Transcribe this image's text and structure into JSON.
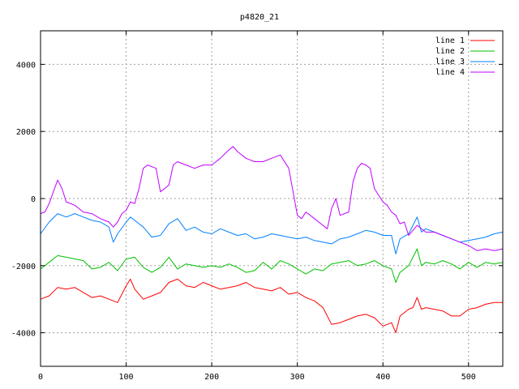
{
  "chart_data": {
    "type": "line",
    "title": "p4820_21",
    "xlabel": "",
    "ylabel": "",
    "xlim": [
      0,
      540
    ],
    "ylim": [
      -5000,
      5000
    ],
    "x_ticks": [
      0,
      100,
      200,
      300,
      400,
      500
    ],
    "y_ticks": [
      -4000,
      -2000,
      0,
      2000,
      4000
    ],
    "x_tick_labels": [
      "0",
      "100",
      "200",
      "300",
      "400",
      "500"
    ],
    "y_tick_labels": [
      "-4000",
      "-2000",
      "0",
      "2000",
      "4000"
    ],
    "grid": true,
    "legend_position": "top-right",
    "series": [
      {
        "name": "line 1",
        "color": "#ff0000",
        "points": [
          [
            0,
            -3000
          ],
          [
            10,
            -2900
          ],
          [
            20,
            -2650
          ],
          [
            30,
            -2700
          ],
          [
            40,
            -2650
          ],
          [
            50,
            -2800
          ],
          [
            60,
            -2950
          ],
          [
            70,
            -2900
          ],
          [
            80,
            -3000
          ],
          [
            90,
            -3100
          ],
          [
            100,
            -2600
          ],
          [
            105,
            -2400
          ],
          [
            110,
            -2700
          ],
          [
            120,
            -3000
          ],
          [
            130,
            -2900
          ],
          [
            140,
            -2800
          ],
          [
            150,
            -2500
          ],
          [
            160,
            -2400
          ],
          [
            170,
            -2600
          ],
          [
            180,
            -2650
          ],
          [
            190,
            -2500
          ],
          [
            200,
            -2600
          ],
          [
            210,
            -2700
          ],
          [
            220,
            -2650
          ],
          [
            230,
            -2600
          ],
          [
            240,
            -2500
          ],
          [
            250,
            -2650
          ],
          [
            260,
            -2700
          ],
          [
            270,
            -2750
          ],
          [
            280,
            -2650
          ],
          [
            290,
            -2850
          ],
          [
            300,
            -2800
          ],
          [
            310,
            -2950
          ],
          [
            320,
            -3050
          ],
          [
            330,
            -3250
          ],
          [
            340,
            -3750
          ],
          [
            350,
            -3700
          ],
          [
            360,
            -3600
          ],
          [
            370,
            -3500
          ],
          [
            380,
            -3450
          ],
          [
            390,
            -3550
          ],
          [
            400,
            -3800
          ],
          [
            410,
            -3700
          ],
          [
            415,
            -4000
          ],
          [
            420,
            -3500
          ],
          [
            430,
            -3300
          ],
          [
            435,
            -3250
          ],
          [
            440,
            -2950
          ],
          [
            445,
            -3300
          ],
          [
            450,
            -3250
          ],
          [
            460,
            -3300
          ],
          [
            470,
            -3350
          ],
          [
            480,
            -3500
          ],
          [
            490,
            -3500
          ],
          [
            500,
            -3300
          ],
          [
            510,
            -3250
          ],
          [
            520,
            -3150
          ],
          [
            530,
            -3100
          ],
          [
            540,
            -3100
          ]
        ]
      },
      {
        "name": "line 2",
        "color": "#00c000",
        "points": [
          [
            0,
            -2100
          ],
          [
            10,
            -1900
          ],
          [
            20,
            -1700
          ],
          [
            30,
            -1750
          ],
          [
            40,
            -1800
          ],
          [
            50,
            -1850
          ],
          [
            60,
            -2100
          ],
          [
            70,
            -2050
          ],
          [
            80,
            -1900
          ],
          [
            90,
            -2150
          ],
          [
            100,
            -1800
          ],
          [
            110,
            -1750
          ],
          [
            120,
            -2050
          ],
          [
            130,
            -2200
          ],
          [
            140,
            -2050
          ],
          [
            150,
            -1750
          ],
          [
            160,
            -2100
          ],
          [
            170,
            -1950
          ],
          [
            180,
            -2000
          ],
          [
            190,
            -2050
          ],
          [
            200,
            -2000
          ],
          [
            210,
            -2050
          ],
          [
            220,
            -1950
          ],
          [
            230,
            -2050
          ],
          [
            240,
            -2200
          ],
          [
            250,
            -2150
          ],
          [
            260,
            -1900
          ],
          [
            270,
            -2100
          ],
          [
            280,
            -1850
          ],
          [
            290,
            -1950
          ],
          [
            300,
            -2100
          ],
          [
            310,
            -2250
          ],
          [
            320,
            -2100
          ],
          [
            330,
            -2150
          ],
          [
            340,
            -1950
          ],
          [
            350,
            -1900
          ],
          [
            360,
            -1850
          ],
          [
            370,
            -2000
          ],
          [
            380,
            -1950
          ],
          [
            390,
            -1850
          ],
          [
            400,
            -2000
          ],
          [
            410,
            -2100
          ],
          [
            415,
            -2500
          ],
          [
            420,
            -2200
          ],
          [
            430,
            -2000
          ],
          [
            440,
            -1500
          ],
          [
            445,
            -2000
          ],
          [
            450,
            -1900
          ],
          [
            460,
            -1950
          ],
          [
            470,
            -1850
          ],
          [
            480,
            -1950
          ],
          [
            490,
            -2100
          ],
          [
            500,
            -1900
          ],
          [
            510,
            -2050
          ],
          [
            520,
            -1900
          ],
          [
            530,
            -1950
          ],
          [
            540,
            -1900
          ]
        ]
      },
      {
        "name": "line 3",
        "color": "#0080ff",
        "points": [
          [
            0,
            -1050
          ],
          [
            10,
            -700
          ],
          [
            20,
            -450
          ],
          [
            30,
            -550
          ],
          [
            40,
            -450
          ],
          [
            50,
            -550
          ],
          [
            60,
            -650
          ],
          [
            70,
            -700
          ],
          [
            80,
            -850
          ],
          [
            85,
            -1300
          ],
          [
            90,
            -1050
          ],
          [
            100,
            -700
          ],
          [
            105,
            -550
          ],
          [
            110,
            -650
          ],
          [
            120,
            -850
          ],
          [
            130,
            -1150
          ],
          [
            140,
            -1100
          ],
          [
            150,
            -750
          ],
          [
            160,
            -600
          ],
          [
            170,
            -950
          ],
          [
            180,
            -850
          ],
          [
            190,
            -1000
          ],
          [
            200,
            -1050
          ],
          [
            210,
            -900
          ],
          [
            220,
            -1000
          ],
          [
            230,
            -1100
          ],
          [
            240,
            -1050
          ],
          [
            250,
            -1200
          ],
          [
            260,
            -1150
          ],
          [
            270,
            -1050
          ],
          [
            280,
            -1100
          ],
          [
            290,
            -1150
          ],
          [
            300,
            -1200
          ],
          [
            310,
            -1150
          ],
          [
            320,
            -1250
          ],
          [
            330,
            -1300
          ],
          [
            340,
            -1350
          ],
          [
            350,
            -1200
          ],
          [
            360,
            -1150
          ],
          [
            370,
            -1050
          ],
          [
            380,
            -950
          ],
          [
            390,
            -1000
          ],
          [
            400,
            -1100
          ],
          [
            410,
            -1100
          ],
          [
            415,
            -1650
          ],
          [
            420,
            -1200
          ],
          [
            430,
            -1050
          ],
          [
            440,
            -550
          ],
          [
            445,
            -1000
          ],
          [
            450,
            -900
          ],
          [
            460,
            -1000
          ],
          [
            470,
            -1100
          ],
          [
            480,
            -1200
          ],
          [
            490,
            -1300
          ],
          [
            500,
            -1250
          ],
          [
            510,
            -1200
          ],
          [
            520,
            -1150
          ],
          [
            530,
            -1050
          ],
          [
            540,
            -1000
          ]
        ]
      },
      {
        "name": "line 4",
        "color": "#c000ff",
        "points": [
          [
            0,
            -450
          ],
          [
            5,
            -400
          ],
          [
            10,
            -150
          ],
          [
            15,
            200
          ],
          [
            20,
            550
          ],
          [
            25,
            300
          ],
          [
            30,
            -100
          ],
          [
            40,
            -200
          ],
          [
            50,
            -400
          ],
          [
            60,
            -450
          ],
          [
            70,
            -600
          ],
          [
            80,
            -700
          ],
          [
            85,
            -850
          ],
          [
            90,
            -700
          ],
          [
            95,
            -450
          ],
          [
            100,
            -350
          ],
          [
            105,
            -100
          ],
          [
            110,
            -150
          ],
          [
            115,
            300
          ],
          [
            120,
            900
          ],
          [
            125,
            1000
          ],
          [
            130,
            950
          ],
          [
            135,
            900
          ],
          [
            140,
            200
          ],
          [
            145,
            300
          ],
          [
            150,
            400
          ],
          [
            155,
            1000
          ],
          [
            160,
            1100
          ],
          [
            170,
            1000
          ],
          [
            180,
            900
          ],
          [
            190,
            1000
          ],
          [
            200,
            1000
          ],
          [
            210,
            1200
          ],
          [
            220,
            1450
          ],
          [
            225,
            1550
          ],
          [
            230,
            1400
          ],
          [
            240,
            1200
          ],
          [
            250,
            1100
          ],
          [
            260,
            1100
          ],
          [
            270,
            1200
          ],
          [
            280,
            1300
          ],
          [
            290,
            900
          ],
          [
            300,
            -500
          ],
          [
            305,
            -600
          ],
          [
            310,
            -400
          ],
          [
            320,
            -600
          ],
          [
            330,
            -800
          ],
          [
            335,
            -900
          ],
          [
            340,
            -300
          ],
          [
            345,
            0
          ],
          [
            350,
            -500
          ],
          [
            360,
            -400
          ],
          [
            365,
            500
          ],
          [
            370,
            900
          ],
          [
            375,
            1050
          ],
          [
            380,
            1000
          ],
          [
            385,
            900
          ],
          [
            390,
            300
          ],
          [
            395,
            100
          ],
          [
            400,
            -100
          ],
          [
            405,
            -200
          ],
          [
            410,
            -400
          ],
          [
            415,
            -500
          ],
          [
            420,
            -750
          ],
          [
            425,
            -700
          ],
          [
            430,
            -1100
          ],
          [
            440,
            -800
          ],
          [
            450,
            -1000
          ],
          [
            460,
            -1000
          ],
          [
            470,
            -1100
          ],
          [
            480,
            -1200
          ],
          [
            490,
            -1300
          ],
          [
            500,
            -1400
          ],
          [
            510,
            -1550
          ],
          [
            520,
            -1500
          ],
          [
            530,
            -1550
          ],
          [
            540,
            -1500
          ]
        ]
      }
    ]
  }
}
